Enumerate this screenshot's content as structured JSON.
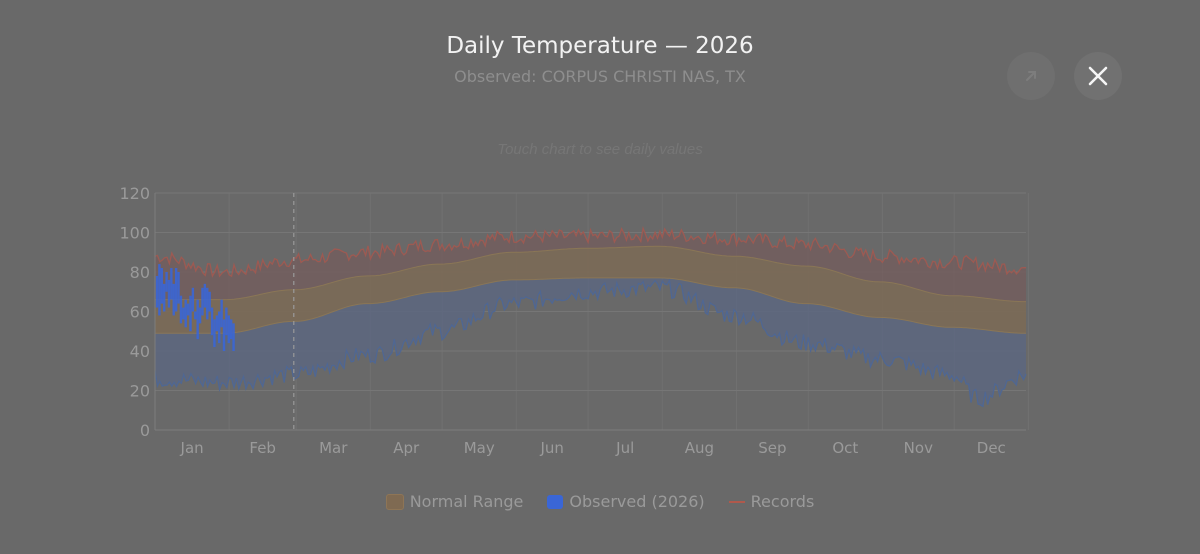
{
  "header": {
    "title": "Daily Temperature — 2026",
    "subtitle": "Observed: CORPUS CHRISTI NAS, TX",
    "hint": "Touch chart to see daily values"
  },
  "buttons": {
    "share_icon": "share-icon",
    "close_icon": "close-icon"
  },
  "colors": {
    "normal_fill": "#7a6a57",
    "normal_stroke": "#8a7656",
    "observed_fill": "#5c6476",
    "observed_line": "#3a66d6",
    "observed_band": "#5d6780",
    "records_line": "#9d5a52",
    "records_fill": "#745c5c",
    "grid": "#767676",
    "tick": "#9a9a9a"
  },
  "legend": [
    {
      "label": "Normal Range",
      "kind": "box",
      "color": "#7f6a52"
    },
    {
      "label": "Observed (2026)",
      "kind": "box",
      "color": "#3a66d6"
    },
    {
      "label": "Records",
      "kind": "line",
      "color": "#b0594c"
    }
  ],
  "chart_data": {
    "type": "area",
    "title": "Daily Temperature — 2026",
    "ylim": [
      0,
      120
    ],
    "yticks": [
      0,
      20,
      40,
      60,
      80,
      100,
      120
    ],
    "categories": [
      "Jan",
      "Feb",
      "Mar",
      "Apr",
      "May",
      "Jun",
      "Jul",
      "Aug",
      "Sep",
      "Oct",
      "Nov",
      "Dec"
    ],
    "today_marker_day": 59,
    "normal_high": [
      [
        1,
        66
      ],
      [
        30,
        66
      ],
      [
        59,
        71
      ],
      [
        90,
        78
      ],
      [
        120,
        84
      ],
      [
        151,
        90
      ],
      [
        181,
        92
      ],
      [
        212,
        93
      ],
      [
        243,
        88
      ],
      [
        273,
        83
      ],
      [
        304,
        75
      ],
      [
        334,
        68
      ],
      [
        365,
        65
      ]
    ],
    "normal_low": [
      [
        1,
        49
      ],
      [
        30,
        49
      ],
      [
        59,
        55
      ],
      [
        90,
        64
      ],
      [
        120,
        70
      ],
      [
        151,
        76
      ],
      [
        181,
        77
      ],
      [
        212,
        77
      ],
      [
        243,
        72
      ],
      [
        273,
        64
      ],
      [
        304,
        57
      ],
      [
        334,
        52
      ],
      [
        365,
        49
      ]
    ],
    "record_high": [
      [
        1,
        88
      ],
      [
        30,
        80
      ],
      [
        59,
        86
      ],
      [
        90,
        90
      ],
      [
        120,
        94
      ],
      [
        151,
        98
      ],
      [
        181,
        98
      ],
      [
        212,
        99
      ],
      [
        243,
        97
      ],
      [
        273,
        94
      ],
      [
        304,
        88
      ],
      [
        334,
        85
      ],
      [
        365,
        82
      ]
    ],
    "record_low": [
      [
        1,
        26
      ],
      [
        30,
        24
      ],
      [
        59,
        28
      ],
      [
        90,
        38
      ],
      [
        120,
        50
      ],
      [
        151,
        64
      ],
      [
        181,
        70
      ],
      [
        212,
        72
      ],
      [
        243,
        58
      ],
      [
        273,
        44
      ],
      [
        304,
        36
      ],
      [
        334,
        28
      ],
      [
        345,
        16
      ],
      [
        365,
        28
      ]
    ],
    "observed": [
      [
        1,
        62,
        78
      ],
      [
        2,
        58,
        84
      ],
      [
        3,
        64,
        82
      ],
      [
        4,
        60,
        74
      ],
      [
        5,
        70,
        80
      ],
      [
        6,
        62,
        76
      ],
      [
        7,
        66,
        82
      ],
      [
        8,
        58,
        74
      ],
      [
        9,
        60,
        82
      ],
      [
        10,
        64,
        80
      ],
      [
        11,
        54,
        68
      ],
      [
        12,
        56,
        62
      ],
      [
        13,
        52,
        66
      ],
      [
        14,
        58,
        64
      ],
      [
        15,
        50,
        68
      ],
      [
        16,
        60,
        72
      ],
      [
        17,
        56,
        60
      ],
      [
        18,
        46,
        66
      ],
      [
        19,
        54,
        62
      ],
      [
        20,
        58,
        72
      ],
      [
        21,
        62,
        74
      ],
      [
        22,
        56,
        72
      ],
      [
        23,
        60,
        70
      ],
      [
        24,
        48,
        62
      ],
      [
        25,
        42,
        56
      ],
      [
        26,
        50,
        58
      ],
      [
        27,
        44,
        60
      ],
      [
        28,
        52,
        66
      ],
      [
        29,
        40,
        56
      ],
      [
        30,
        48,
        62
      ],
      [
        31,
        44,
        58
      ],
      [
        32,
        46,
        56
      ],
      [
        33,
        40,
        54
      ]
    ]
  }
}
